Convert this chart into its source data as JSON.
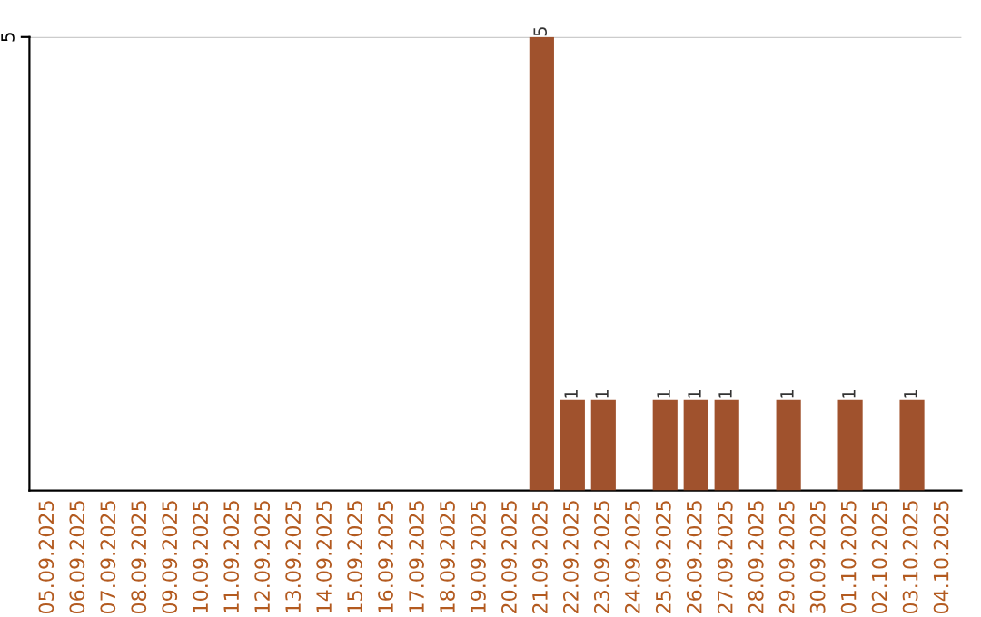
{
  "chart_data": {
    "type": "bar",
    "categories": [
      "05.09.2025",
      "06.09.2025",
      "07.09.2025",
      "08.09.2025",
      "09.09.2025",
      "10.09.2025",
      "11.09.2025",
      "12.09.2025",
      "13.09.2025",
      "14.09.2025",
      "15.09.2025",
      "16.09.2025",
      "17.09.2025",
      "18.09.2025",
      "19.09.2025",
      "20.09.2025",
      "21.09.2025",
      "22.09.2025",
      "23.09.2025",
      "24.09.2025",
      "25.09.2025",
      "26.09.2025",
      "27.09.2025",
      "28.09.2025",
      "29.09.2025",
      "30.09.2025",
      "01.10.2025",
      "02.10.2025",
      "03.10.2025",
      "04.10.2025"
    ],
    "values": [
      null,
      null,
      null,
      null,
      null,
      null,
      null,
      null,
      null,
      null,
      null,
      null,
      null,
      null,
      null,
      null,
      5,
      1,
      1,
      null,
      1,
      1,
      1,
      null,
      1,
      null,
      1,
      null,
      1,
      null
    ],
    "data_labels": true,
    "color": "#a0522d",
    "ref_lines": [
      {
        "axis": "y",
        "value": 5,
        "label": "5",
        "color": "#cccccc"
      }
    ]
  }
}
